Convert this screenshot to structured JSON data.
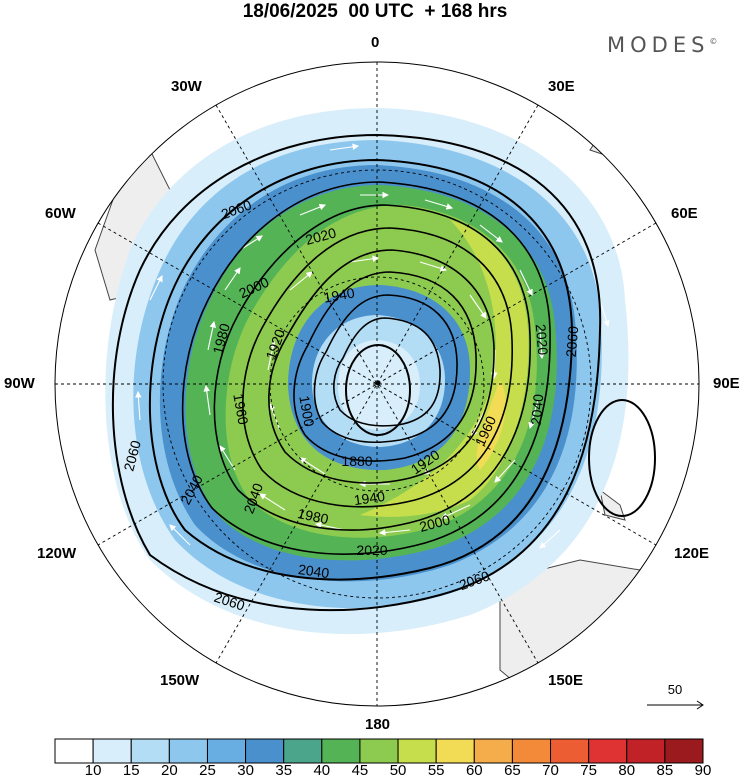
{
  "header": {
    "title": "18/06/2025  00 UTC  + 168 hrs",
    "brand": "MODES",
    "brand_mark": "©"
  },
  "longitude_labels": [
    "0",
    "30E",
    "60E",
    "90E",
    "120E",
    "150E",
    "180",
    "150W",
    "120W",
    "90W",
    "60W",
    "30W"
  ],
  "contours": {
    "labels": [
      "1880",
      "1900",
      "1920",
      "1940",
      "1960",
      "1980",
      "2000",
      "2020",
      "2040",
      "2060"
    ]
  },
  "colorbar": {
    "tick_labels": [
      "10",
      "15",
      "20",
      "25",
      "30",
      "35",
      "40",
      "45",
      "50",
      "55",
      "60",
      "65",
      "70",
      "75",
      "80",
      "85",
      "90"
    ],
    "colors": [
      "#ffffff",
      "#d8eefa",
      "#b3dcf5",
      "#8ec7ee",
      "#68aee3",
      "#4a90cd",
      "#4aa58a",
      "#54b455",
      "#8ccb4f",
      "#c6de4c",
      "#f2dc56",
      "#f4ad4a",
      "#f28a3a",
      "#ec5d34",
      "#df3232",
      "#c02228",
      "#9a1a1e"
    ]
  },
  "reference_vector": {
    "label": "50"
  },
  "colors": {
    "land": "#eeeeee",
    "graticule": "#000000",
    "contour": "#000000",
    "vector": "#ffffff"
  }
}
